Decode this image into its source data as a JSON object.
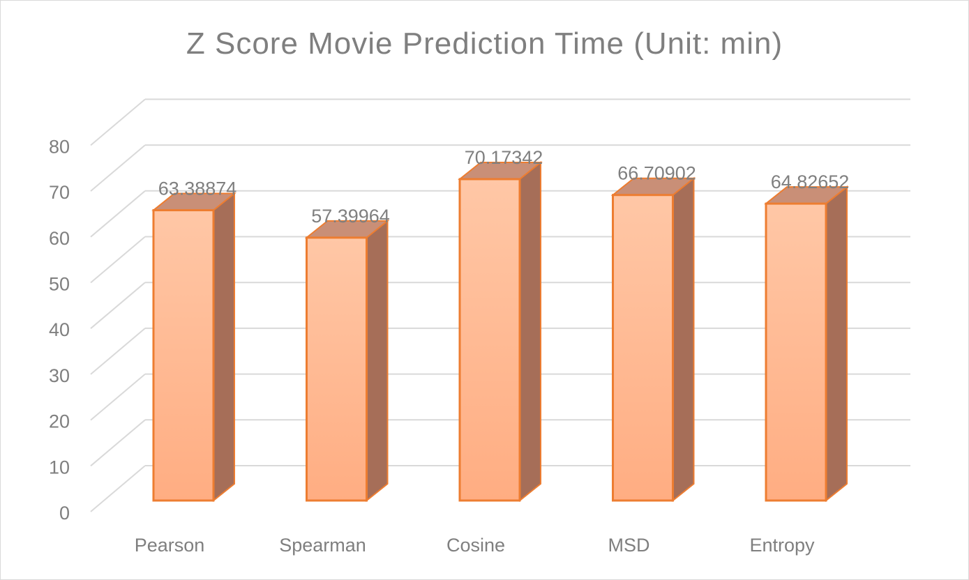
{
  "chart_data": {
    "type": "bar",
    "title": "Z Score Movie Prediction Time (Unit: min)",
    "categories": [
      "Pearson",
      "Spearman",
      "Cosine",
      "MSD",
      "Entropy"
    ],
    "values": [
      63.38874,
      57.39964,
      70.17342,
      66.70902,
      64.82652
    ],
    "value_labels": [
      "63.38874",
      "57.39964",
      "70.17342",
      "66.70902",
      "64.82652"
    ],
    "ylim": [
      0,
      80
    ],
    "yticks": [
      "0",
      "10",
      "20",
      "30",
      "40",
      "50",
      "60",
      "70",
      "80"
    ],
    "grid": true,
    "style": "3d-column",
    "colors": {
      "bar_front_top": "#ffc7a6",
      "bar_front_bottom": "#ffad82",
      "bar_side": "#a66e58",
      "bar_top": "#c98f77",
      "bar_outline": "#ed7d31",
      "grid": "#d9d9d9",
      "text": "#7f7f7f"
    }
  }
}
